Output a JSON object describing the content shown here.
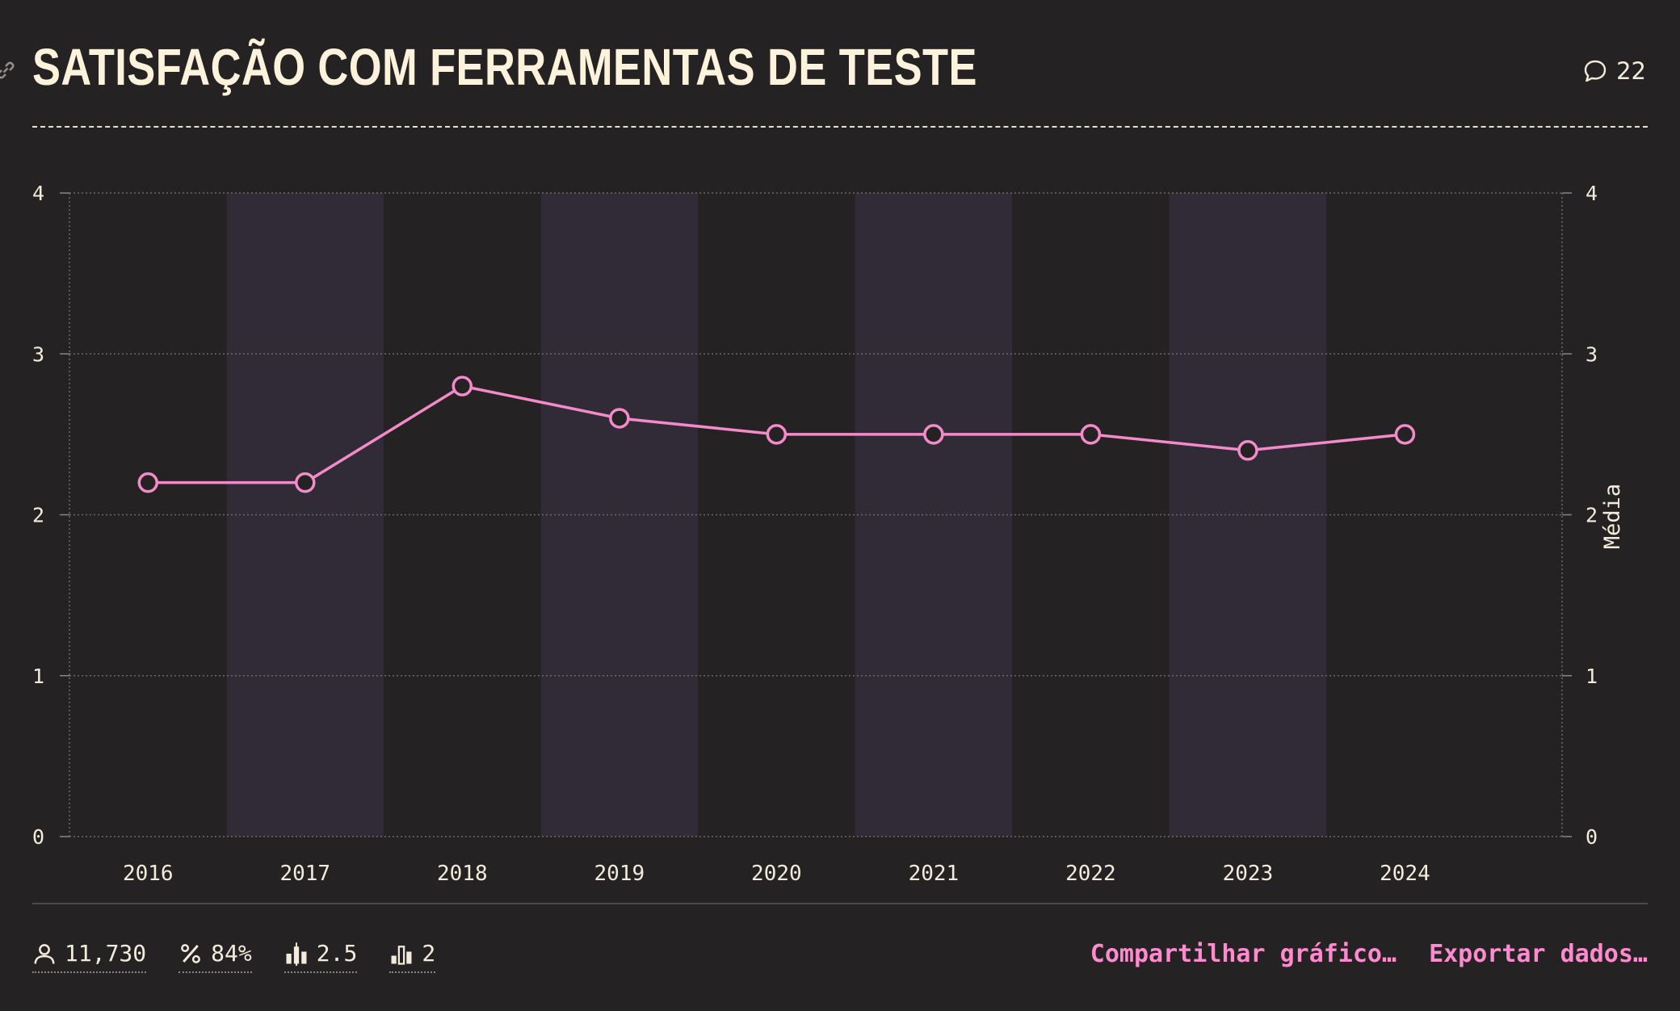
{
  "header": {
    "title": "Satisfação com ferramentas de teste",
    "comment_count": "22",
    "comment_icon": "speech-bubble-icon",
    "link_icon": "link-icon"
  },
  "chart_data": {
    "type": "line",
    "title": "Satisfação com ferramentas de teste",
    "x": [
      "2016",
      "2017",
      "2018",
      "2019",
      "2020",
      "2021",
      "2022",
      "2023",
      "2024"
    ],
    "series": [
      {
        "values": [
          2.2,
          2.2,
          2.8,
          2.6,
          2.5,
          2.5,
          2.5,
          2.4,
          2.5
        ]
      }
    ],
    "ylim": [
      0,
      4
    ],
    "yticks": [
      "0",
      "1",
      "2",
      "3",
      "4"
    ],
    "ylabel_right": "Média",
    "grid": true,
    "alternating_column_bands": true,
    "colors": {
      "line": "#f58acb",
      "band": "#302b36",
      "background": "#252223"
    }
  },
  "footer": {
    "stats": [
      {
        "icon": "person-icon",
        "value": "11,730"
      },
      {
        "icon": "percent-icon",
        "value": "84%"
      },
      {
        "icon": "bar-median-icon",
        "value": "2.5"
      },
      {
        "icon": "bar-mode-icon",
        "value": "2"
      }
    ],
    "actions": {
      "share": "Compartilhar gráfico…",
      "export": "Exportar dados…"
    }
  }
}
